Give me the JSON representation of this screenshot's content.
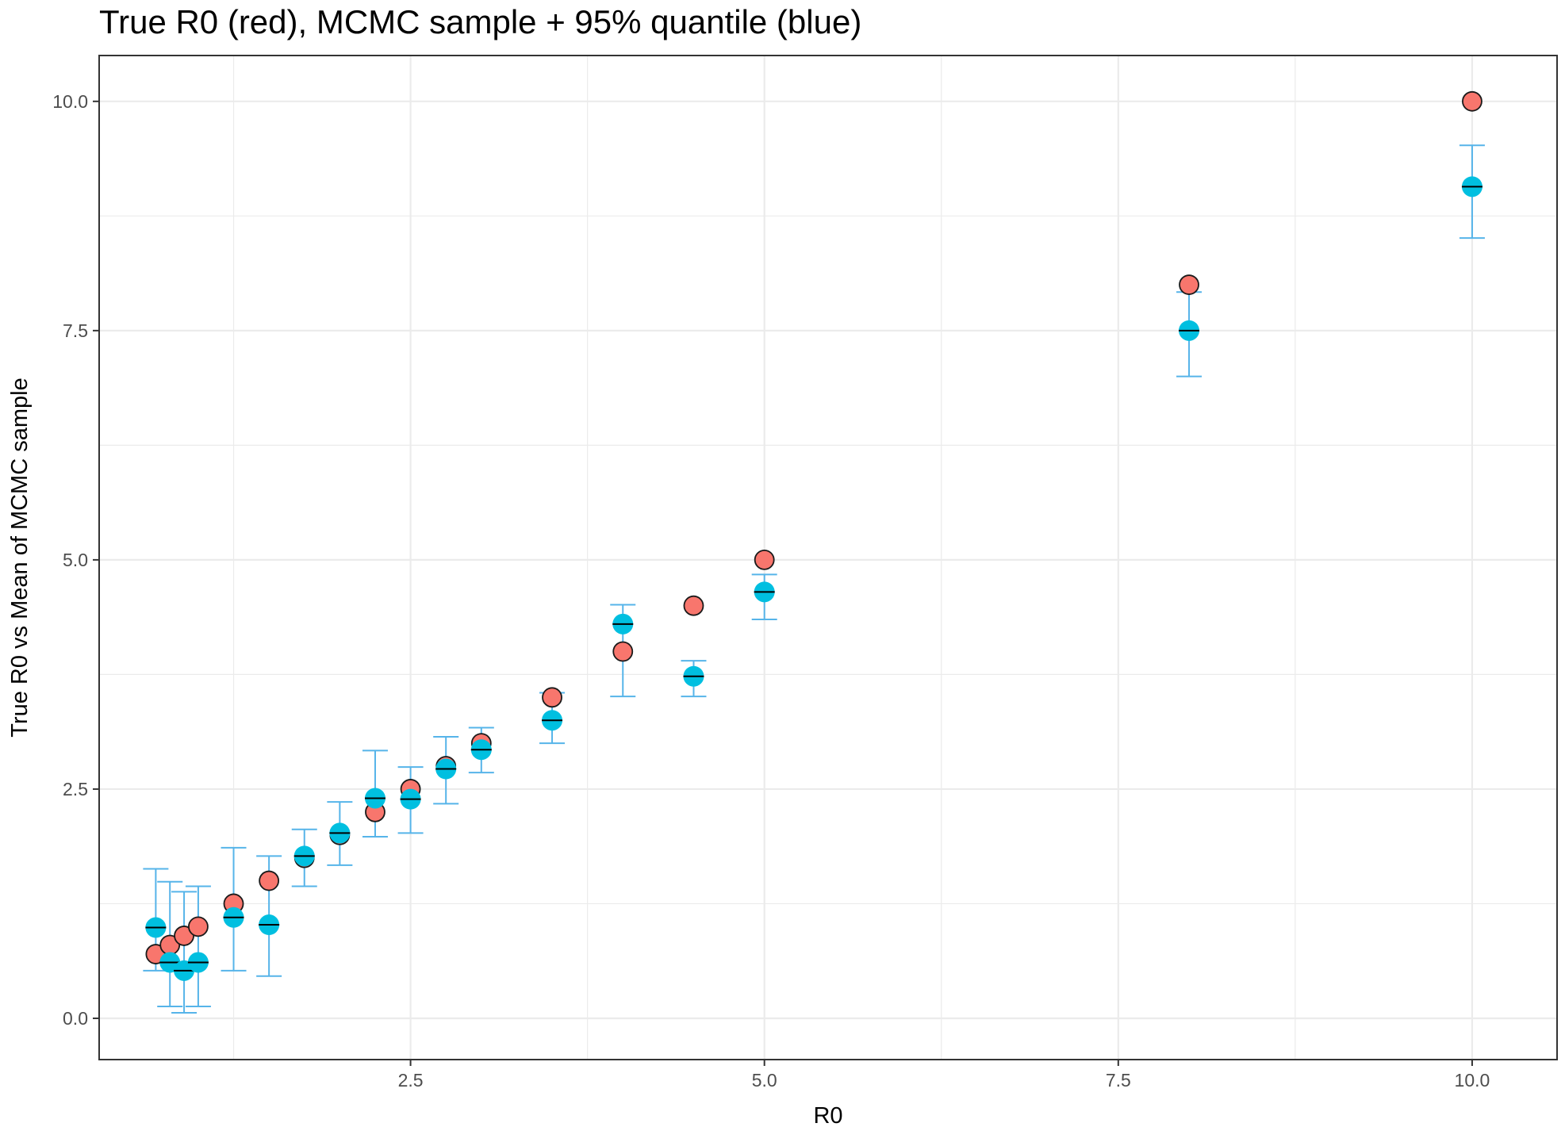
{
  "chart_data": {
    "type": "scatter",
    "title": "True R0 (red), MCMC sample + 95% quantile (blue)",
    "xlabel": "R0",
    "ylabel": "True R0 vs Mean of MCMC sample",
    "xlim": [
      0.3,
      10.6
    ],
    "ylim": [
      -0.45,
      10.5
    ],
    "x_ticks": [
      2.5,
      5.0,
      7.5,
      10.0
    ],
    "x_tick_labels": [
      "2.5",
      "5.0",
      "7.5",
      "10.0"
    ],
    "y_ticks": [
      0.0,
      2.5,
      5.0,
      7.5,
      10.0
    ],
    "y_tick_labels": [
      "0.0",
      "2.5",
      "5.0",
      "7.5",
      "10.0"
    ],
    "grid": true,
    "colors": {
      "true_point": "#F8766D",
      "mcmc_point": "#00BFE0",
      "errorbar": "#56B4E9",
      "mean_marker": "#000000",
      "grid": "#ebebeb",
      "panel_border": "#333333"
    },
    "series": [
      {
        "x": [
          0.7,
          0.8,
          0.9,
          1.0,
          1.25,
          1.5,
          1.75,
          2.0,
          2.25,
          2.5,
          2.75,
          3.0,
          3.5,
          4.0,
          4.5,
          5.0,
          8.0,
          10.0
        ],
        "values": [
          0.7,
          0.8,
          0.9,
          1.0,
          1.25,
          1.5,
          1.75,
          2.0,
          2.25,
          2.5,
          2.75,
          3.0,
          3.5,
          4.0,
          4.5,
          5.0,
          8.0,
          10.0
        ]
      },
      {
        "x": [
          0.7,
          0.8,
          0.9,
          1.0,
          1.25,
          1.5,
          1.75,
          2.0,
          2.25,
          2.5,
          2.75,
          3.0,
          3.5,
          4.0,
          4.5,
          5.0,
          8.0,
          10.0
        ],
        "values": [
          0.99,
          0.61,
          0.52,
          0.61,
          1.1,
          1.02,
          1.77,
          2.02,
          2.4,
          2.39,
          2.72,
          2.93,
          3.25,
          4.3,
          3.73,
          4.65,
          7.5,
          9.07
        ],
        "lower": [
          0.52,
          0.13,
          0.06,
          0.13,
          0.52,
          0.46,
          1.44,
          1.67,
          1.98,
          2.02,
          2.34,
          2.68,
          3.0,
          3.51,
          3.51,
          4.35,
          7.0,
          8.51
        ],
        "upper": [
          1.63,
          1.49,
          1.38,
          1.44,
          1.86,
          1.77,
          2.06,
          2.36,
          2.92,
          2.74,
          3.07,
          3.17,
          3.55,
          4.51,
          3.9,
          4.84,
          7.92,
          9.52
        ]
      }
    ]
  }
}
